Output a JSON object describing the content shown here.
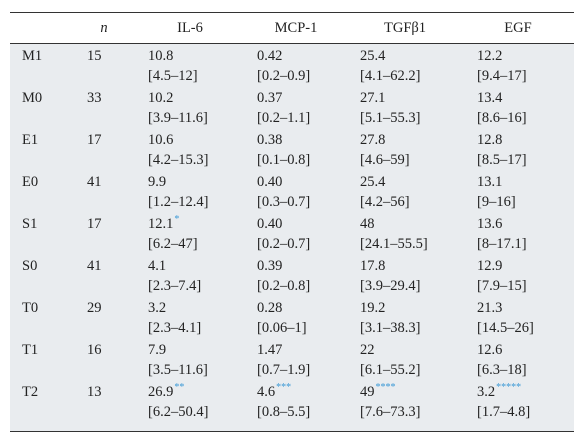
{
  "table": {
    "header": [
      "n",
      "IL-6",
      "MCP-1",
      "TGFβ1",
      "EGF"
    ],
    "rows": [
      {
        "label": "M1",
        "n": "15",
        "cells": [
          {
            "value": "10.8",
            "range": "[4.5–12]"
          },
          {
            "value": "0.42",
            "range": "[0.2–0.9]"
          },
          {
            "value": "25.4",
            "range": "[4.1–62.2]"
          },
          {
            "value": "12.2",
            "range": "[9.4–17]"
          }
        ]
      },
      {
        "label": "M0",
        "n": "33",
        "cells": [
          {
            "value": "10.2",
            "range": "[3.9–11.6]"
          },
          {
            "value": "0.37",
            "range": "[0.2–1.1]"
          },
          {
            "value": "27.1",
            "range": "[5.1–55.3]"
          },
          {
            "value": "13.4",
            "range": "[8.6–16]"
          }
        ]
      },
      {
        "label": "E1",
        "n": "17",
        "cells": [
          {
            "value": "10.6",
            "range": "[4.2–15.3]"
          },
          {
            "value": "0.38",
            "range": "[0.1–0.8]"
          },
          {
            "value": "27.8",
            "range": "[4.6–59]"
          },
          {
            "value": "12.8",
            "range": "[8.5–17]"
          }
        ]
      },
      {
        "label": "E0",
        "n": "41",
        "cells": [
          {
            "value": "9.9",
            "range": "[1.2–12.4]"
          },
          {
            "value": "0.40",
            "range": "[0.3–0.7]"
          },
          {
            "value": "25.4",
            "range": "[4.2–56]"
          },
          {
            "value": "13.1",
            "range": "[9–16]"
          }
        ]
      },
      {
        "label": "S1",
        "n": "17",
        "cells": [
          {
            "value": "12.1",
            "note": "*",
            "range": "[6.2–47]"
          },
          {
            "value": "0.40",
            "range": "[0.2–0.7]"
          },
          {
            "value": "48",
            "range": "[24.1–55.5]"
          },
          {
            "value": "13.6",
            "range": "[8–17.1]"
          }
        ]
      },
      {
        "label": "S0",
        "n": "41",
        "cells": [
          {
            "value": "4.1",
            "range": "[2.3–7.4]"
          },
          {
            "value": "0.39",
            "range": "[0.2–0.8]"
          },
          {
            "value": "17.8",
            "range": "[3.9–29.4]"
          },
          {
            "value": "12.9",
            "range": "[7.9–15]"
          }
        ]
      },
      {
        "label": "T0",
        "n": "29",
        "cells": [
          {
            "value": "3.2",
            "range": "[2.3–4.1]"
          },
          {
            "value": "0.28",
            "range": "[0.06–1]"
          },
          {
            "value": "19.2",
            "range": "[3.1–38.3]"
          },
          {
            "value": "21.3",
            "range": "[14.5–26]"
          }
        ]
      },
      {
        "label": "T1",
        "n": "16",
        "cells": [
          {
            "value": "7.9",
            "range": "[3.5–11.6]"
          },
          {
            "value": "1.47",
            "range": "[0.7–1.9]"
          },
          {
            "value": "22",
            "range": "[6.1–55.2]"
          },
          {
            "value": "12.6",
            "range": "[6.3–18]"
          }
        ]
      },
      {
        "label": "T2",
        "n": "13",
        "cells": [
          {
            "value": "26.9",
            "note": "**",
            "range": "[6.2–50.4]"
          },
          {
            "value": "4.6",
            "note": "***",
            "range": "[0.8–5.5]"
          },
          {
            "value": "49",
            "note": "****",
            "range": "[7.6–73.3]"
          },
          {
            "value": "3.2",
            "note": "*****",
            "range": "[1.7–4.8]"
          }
        ]
      }
    ]
  }
}
